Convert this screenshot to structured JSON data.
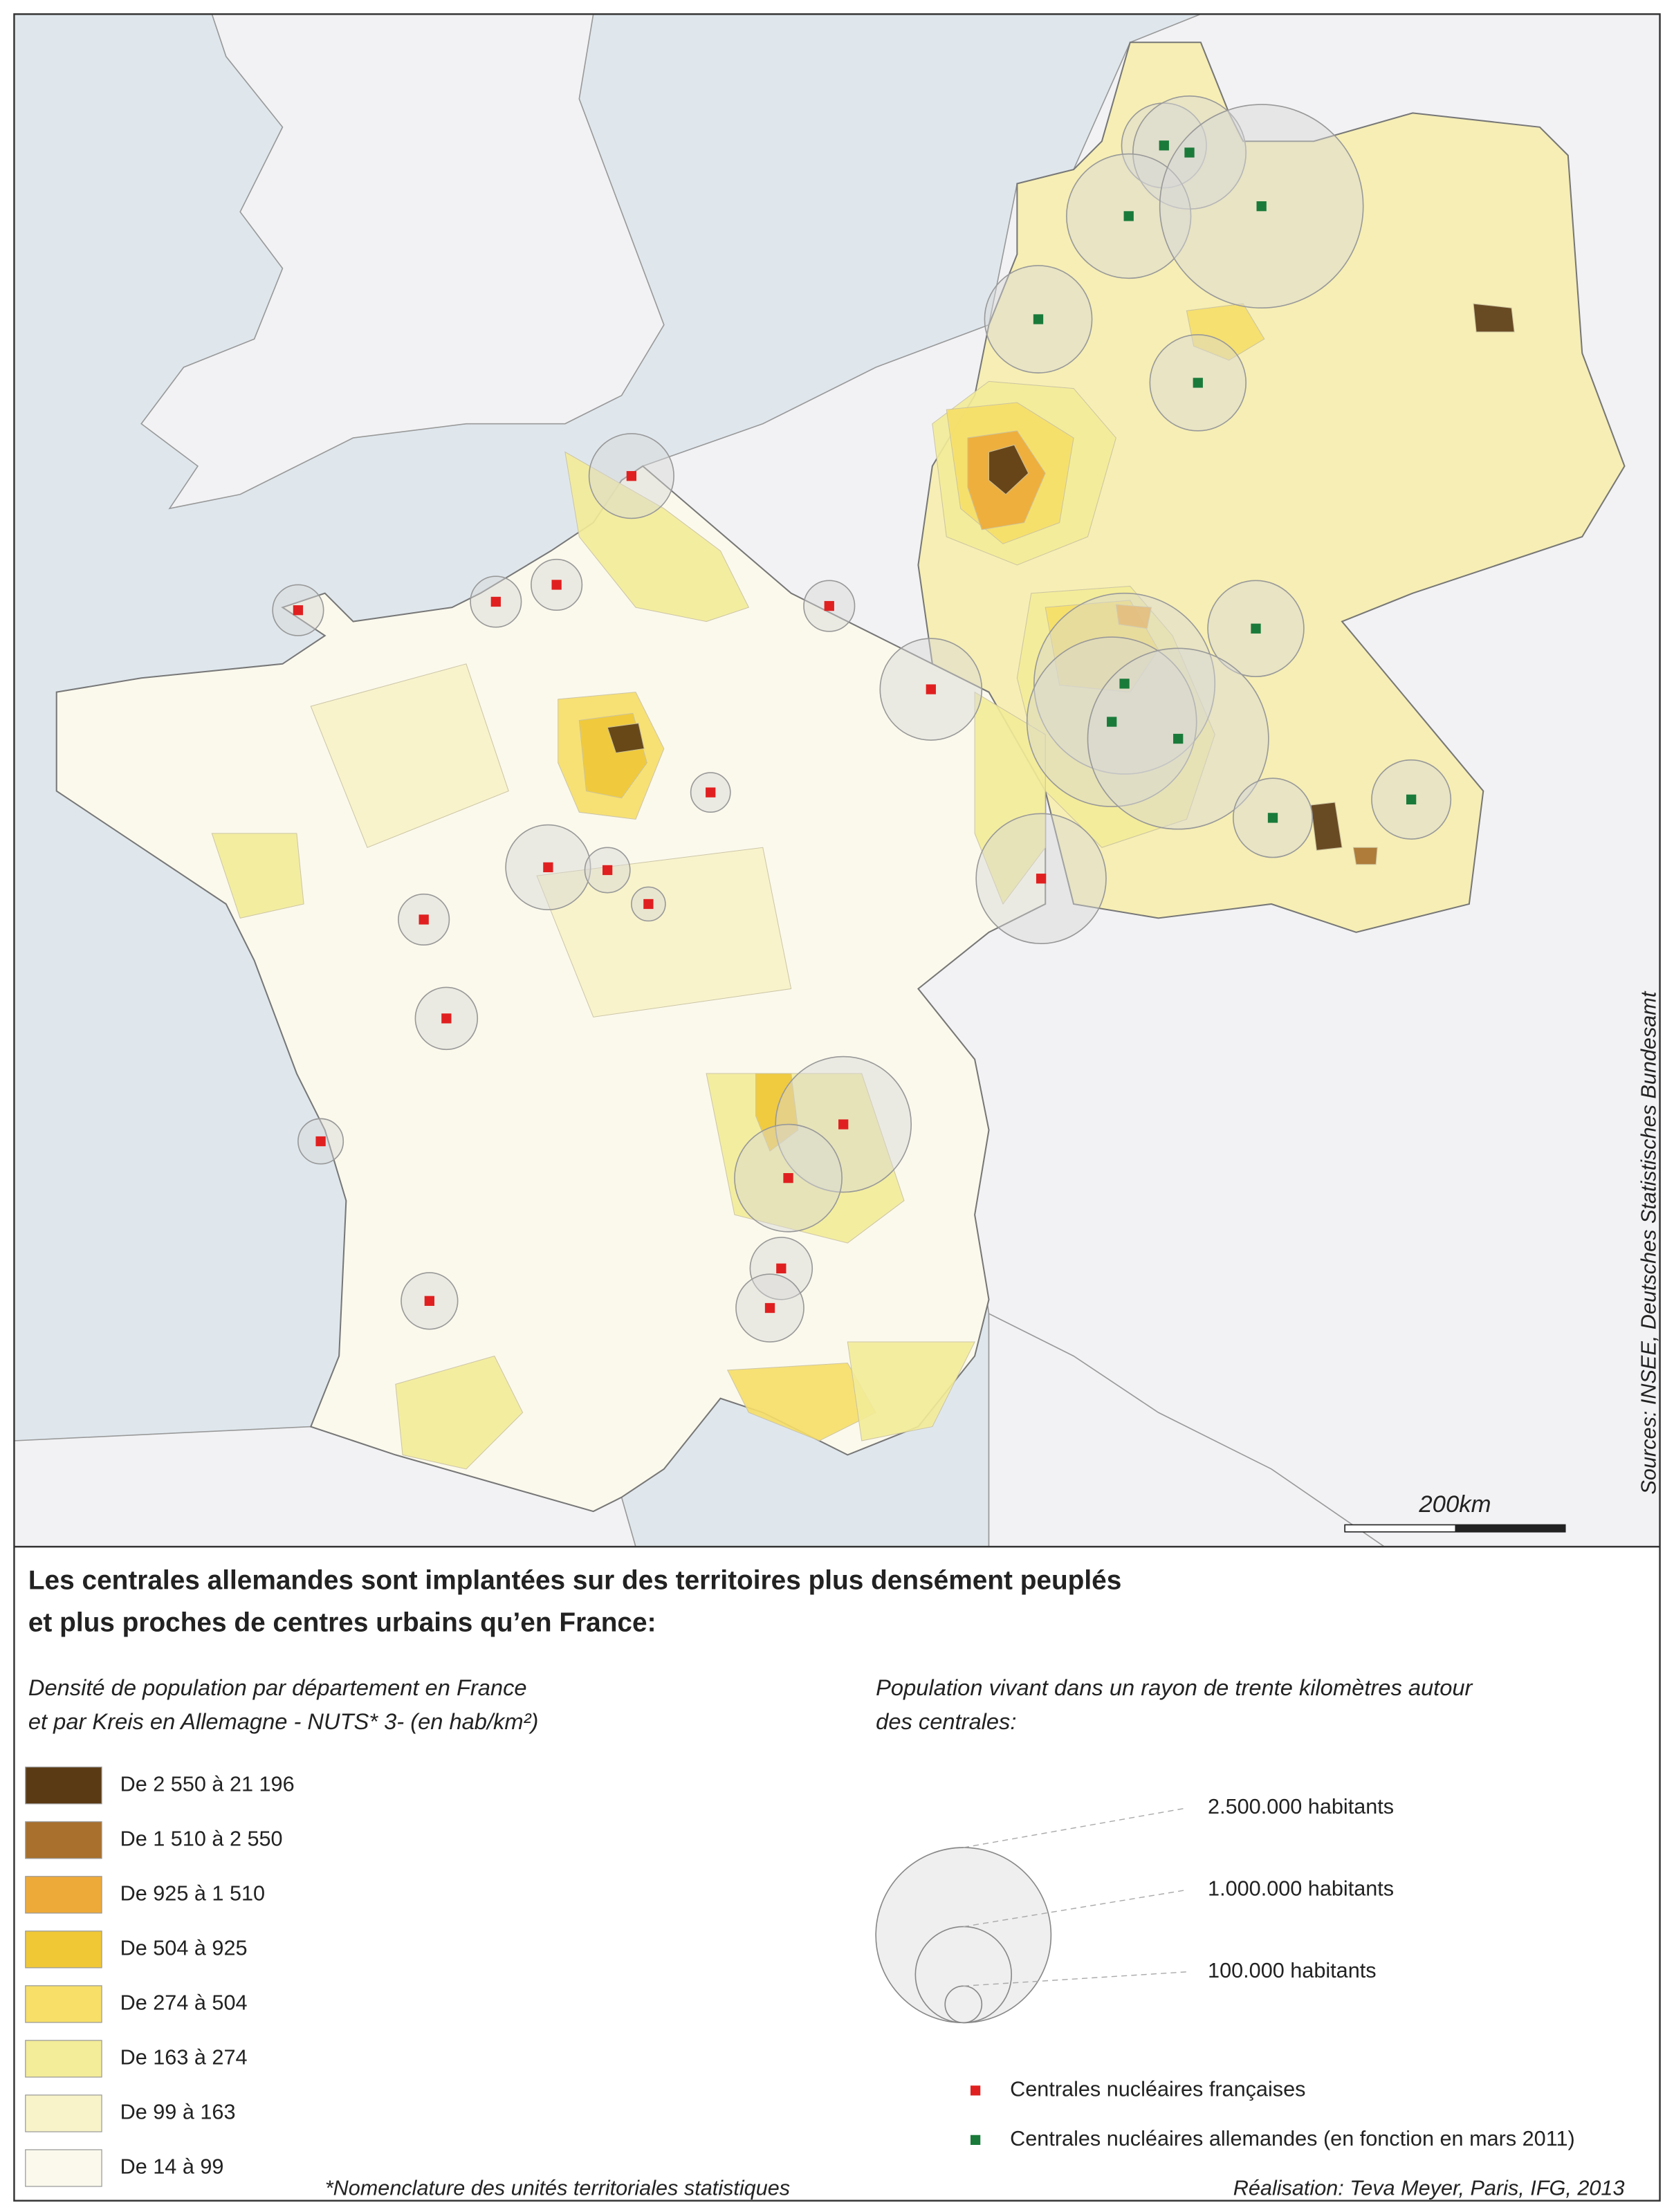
{
  "title": [
    "Les centrales allemandes sont implantées sur des territoires plus densément peuplés",
    "et plus proches de centres urbains qu’en France:"
  ],
  "density_legend": {
    "title": [
      "Densité de population par département en France",
      "et par Kreis en Allemagne - NUTS* 3- (en hab/km²)"
    ],
    "classes": [
      {
        "label": "De 2 550 à 21 196",
        "color": "#5a3a14"
      },
      {
        "label": "De 1 510 à 2 550",
        "color": "#a8702c"
      },
      {
        "label": "De 925 à 1 510",
        "color": "#eeaa38"
      },
      {
        "label": "De 504 à 925",
        "color": "#f0c836"
      },
      {
        "label": "De 274 à 504",
        "color": "#f7df68"
      },
      {
        "label": "De 163 à 274",
        "color": "#f3ec98"
      },
      {
        "label": "De 99 à 163",
        "color": "#f8f3c8"
      },
      {
        "label": "De 14 à 99",
        "color": "#fbf9ec"
      }
    ]
  },
  "circle_legend": {
    "title": [
      "Population vivant dans un rayon de trente kilomètres autour",
      "des centrales:"
    ],
    "items": [
      "2.500.000 habitants",
      "1.000.000 habitants",
      "100.000 habitants"
    ]
  },
  "plant_legend": [
    {
      "label": "Centrales nucléaires françaises",
      "color": "#e02020"
    },
    {
      "label": "Centrales nucléaires allemandes (en fonction en mars 2011)",
      "color": "#1a7a3a"
    }
  ],
  "footnote": "*Nomenclature des unités territoriales statistiques",
  "credit": "Réalisation: Teva Meyer, Paris, IFG, 2013",
  "sources": "Sources: INSEE, Deutsches Statistisches Bundesamt",
  "scale_label": "200km"
}
